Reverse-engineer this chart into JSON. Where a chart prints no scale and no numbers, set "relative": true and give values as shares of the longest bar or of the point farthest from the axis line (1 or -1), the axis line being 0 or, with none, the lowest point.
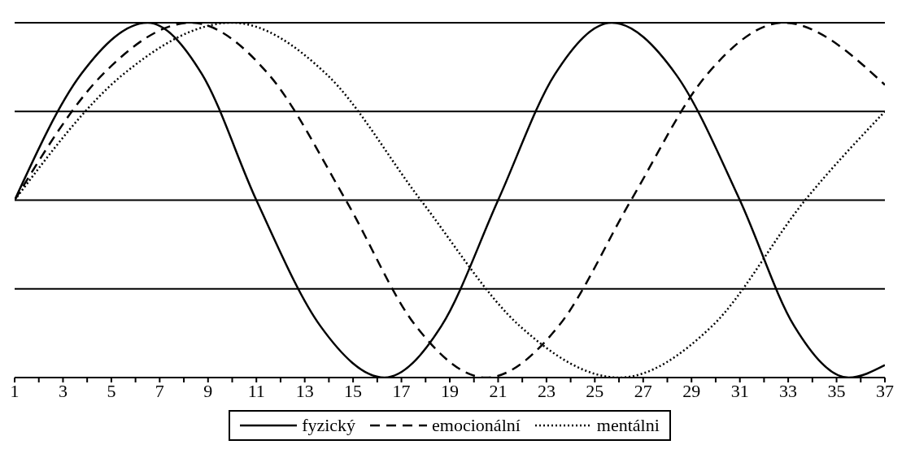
{
  "chart_data": {
    "type": "line",
    "relative": true,
    "grid": "y",
    "legend": "bottom",
    "marker": "none",
    "xlim": [
      1,
      37
    ],
    "xticks": [
      1,
      {
        "value": 2,
        "label": null
      },
      3,
      {
        "value": 4,
        "label": null
      },
      5,
      {
        "value": 6,
        "label": null
      },
      7,
      {
        "value": 8,
        "label": null
      },
      9,
      {
        "value": 10,
        "label": null
      },
      11,
      {
        "value": 12,
        "label": null
      },
      13,
      {
        "value": 14,
        "label": null
      },
      15,
      {
        "value": 16,
        "label": null
      },
      17,
      {
        "value": 18,
        "label": null
      },
      19,
      {
        "value": 20,
        "label": null
      },
      21,
      {
        "value": 22,
        "label": null
      },
      23,
      {
        "value": 24,
        "label": null
      },
      25,
      {
        "value": 26,
        "label": null
      },
      27,
      {
        "value": 28,
        "label": null
      },
      29,
      {
        "value": 30,
        "label": null
      },
      31,
      {
        "value": 32,
        "label": null
      },
      33,
      {
        "value": 34,
        "label": null
      },
      35,
      {
        "value": 36,
        "label": null
      },
      37
    ],
    "series": [
      {
        "name": "fyzický",
        "color": "#000000",
        "line_style": "solid",
        "x": [
          1,
          3.75,
          6.5,
          8.75,
          11,
          13.65,
          16.3,
          18.65,
          21,
          23.35,
          25.7,
          28.35,
          31,
          33.25,
          35.5,
          37
        ],
        "values": [
          0,
          0.71,
          1,
          0.71,
          0,
          -0.71,
          -1,
          -0.71,
          0,
          0.71,
          1,
          0.71,
          0,
          -0.71,
          -1,
          -0.93
        ]
      },
      {
        "name": "emocionální",
        "color": "#000000",
        "line_style": "dashed",
        "x": [
          1,
          4.65,
          8.3,
          11.5,
          14.7,
          17.6,
          20.5,
          23.5,
          26.5,
          29.65,
          32.8,
          37
        ],
        "values": [
          0,
          0.71,
          1,
          0.71,
          0,
          -0.71,
          -1,
          -0.71,
          0,
          0.71,
          1,
          0.65
        ]
      },
      {
        "name": "mentálni",
        "color": "#000000",
        "line_style": "dotted",
        "x": [
          1,
          5.5,
          10,
          13.9,
          17.8,
          21.9,
          26,
          29.85,
          33.7,
          37
        ],
        "values": [
          0,
          0.71,
          1,
          0.71,
          0,
          -0.71,
          -1,
          -0.71,
          0,
          0.5
        ]
      }
    ]
  }
}
